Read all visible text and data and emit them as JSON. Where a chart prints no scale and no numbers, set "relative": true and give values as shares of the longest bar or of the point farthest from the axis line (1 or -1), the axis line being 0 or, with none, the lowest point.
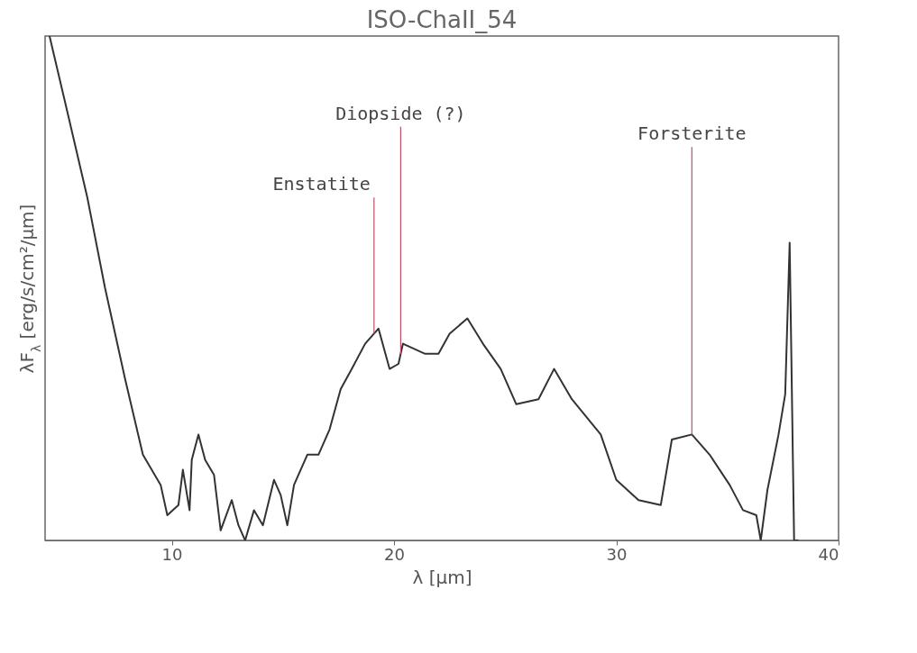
{
  "chart_data": {
    "type": "line",
    "title": "ISO-ChaII_54",
    "xlabel": "λ [µm]",
    "ylabel": "λF$_{λ}$ [erg/s/cm²/µm]",
    "relative": true,
    "xlim": [
      4.3,
      40
    ],
    "xticks": [
      10,
      20,
      30,
      40
    ],
    "grid": false,
    "marker": "none",
    "line_style": "solid",
    "series": [
      {
        "color": "#333333",
        "x": [
          4.5,
          5.3,
          6.2,
          7.0,
          7.9,
          8.7,
          9.5,
          9.8,
          10.3,
          10.5,
          10.8,
          10.9,
          11.2,
          11.5,
          11.9,
          12.2,
          12.7,
          13.0,
          13.3,
          13.7,
          14.1,
          14.6,
          14.9,
          15.2,
          15.5,
          16.1,
          16.6,
          17.1,
          17.6,
          18.1,
          18.7,
          19.1,
          19.3,
          19.8,
          20.2,
          20.4,
          21.4,
          22.0,
          22.5,
          23.3,
          24.0,
          24.8,
          25.5,
          26.5,
          27.2,
          28.0,
          29.3,
          30.0,
          31.0,
          32.0,
          32.5,
          33.4,
          34.2,
          35.1,
          35.7,
          36.3,
          36.5,
          36.8,
          37.3,
          37.6,
          37.8,
          38.0,
          38.2
        ],
        "values": [
          1.0,
          0.85,
          0.68,
          0.5,
          0.32,
          0.17,
          0.11,
          0.05,
          0.07,
          0.14,
          0.06,
          0.16,
          0.21,
          0.16,
          0.13,
          0.02,
          0.08,
          0.03,
          0.0,
          0.06,
          0.03,
          0.12,
          0.09,
          0.03,
          0.11,
          0.17,
          0.17,
          0.22,
          0.3,
          0.34,
          0.39,
          0.41,
          0.42,
          0.34,
          0.35,
          0.39,
          0.37,
          0.37,
          0.41,
          0.44,
          0.39,
          0.34,
          0.27,
          0.28,
          0.34,
          0.28,
          0.21,
          0.12,
          0.08,
          0.07,
          0.2,
          0.21,
          0.17,
          0.11,
          0.06,
          0.05,
          0.0,
          0.1,
          0.21,
          0.29,
          0.59,
          0.0,
          0.0
        ]
      }
    ],
    "annotations": [
      {
        "text": "Diopside (?)",
        "x": 20.3,
        "y": 0.37
      },
      {
        "text": "Enstatite",
        "x": 19.1,
        "y": 0.41
      },
      {
        "text": "Forsterite",
        "x": 33.4,
        "y": 0.21
      }
    ]
  }
}
